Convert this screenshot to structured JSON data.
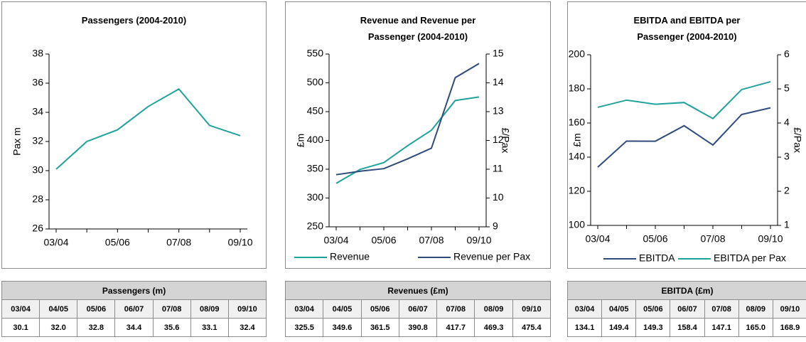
{
  "chart_data": [
    {
      "type": "line",
      "title": "Passengers (2004-2010)",
      "ylabel": "Pax m",
      "categories": [
        "03/04",
        null,
        "05/06",
        null,
        "07/08",
        null,
        "09/10"
      ],
      "series": [
        {
          "color": "#1fa39a",
          "values": [
            30.1,
            32.0,
            32.8,
            34.4,
            35.6,
            33.1,
            32.4
          ]
        }
      ],
      "ylim": [
        26,
        38
      ],
      "yticks": [
        26,
        28,
        30,
        32,
        34,
        36,
        38
      ]
    },
    {
      "type": "line",
      "title": "Revenue and Revenue per Passenger (2004-2010)",
      "ylabel": "£m",
      "y2label": "£/Pax",
      "categories": [
        "03/04",
        null,
        "05/06",
        null,
        "07/08",
        null,
        "09/10"
      ],
      "series": [
        {
          "name": "Revenue",
          "color": "#1fa39a",
          "values": [
            325.5,
            349.6,
            361.5,
            390.8,
            417.7,
            469.3,
            475.4
          ]
        },
        {
          "name": "Revenue per Pax",
          "color": "#2f4b7c",
          "axis": "y2",
          "values": [
            10.81,
            10.93,
            11.02,
            11.36,
            11.73,
            14.18,
            14.67
          ]
        }
      ],
      "ylim": [
        250,
        550
      ],
      "yticks": [
        250,
        300,
        350,
        400,
        450,
        500,
        550
      ],
      "y2lim": [
        9,
        15
      ],
      "y2ticks": [
        9,
        10,
        11,
        12,
        13,
        14,
        15
      ],
      "legend": "bottom"
    },
    {
      "type": "line",
      "title": "EBITDA and EBITDA per Passenger (2004-2010)",
      "ylabel": "£m",
      "y2label": "£/Pax",
      "categories": [
        "03/04",
        null,
        "05/06",
        null,
        "07/08",
        null,
        "09/10"
      ],
      "series": [
        {
          "name": "EBITDA",
          "color": "#2f4b7c",
          "values": [
            134.1,
            149.4,
            149.3,
            158.4,
            147.1,
            165.0,
            168.9
          ]
        },
        {
          "name": "EBITDA per Pax",
          "color": "#1fa39a",
          "axis": "y2",
          "values": [
            4.46,
            4.67,
            4.55,
            4.6,
            4.13,
            4.98,
            5.21
          ]
        }
      ],
      "ylim": [
        100,
        200
      ],
      "yticks": [
        100,
        120,
        140,
        160,
        180,
        200
      ],
      "y2lim": [
        1,
        6
      ],
      "y2ticks": [
        1,
        2,
        3,
        4,
        5,
        6
      ],
      "legend": "bottom"
    }
  ],
  "tables": [
    {
      "title": "Passengers (m)",
      "header": [
        "03/04",
        "04/05",
        "05/06",
        "06/07",
        "07/08",
        "08/09",
        "09/10"
      ],
      "rows": [
        [
          "30.1",
          "32.0",
          "32.8",
          "34.4",
          "35.6",
          "33.1",
          "32.4"
        ]
      ]
    },
    {
      "title": "Revenues (£m)",
      "header": [
        "03/04",
        "04/05",
        "05/06",
        "06/07",
        "07/08",
        "08/09",
        "09/10"
      ],
      "rows": [
        [
          "325.5",
          "349.6",
          "361.5",
          "390.8",
          "417.7",
          "469.3",
          "475.4"
        ]
      ]
    },
    {
      "title": "EBITDA (£m)",
      "header": [
        "03/04",
        "04/05",
        "05/06",
        "06/07",
        "07/08",
        "08/09",
        "09/10"
      ],
      "rows": [
        [
          "134.1",
          "149.4",
          "149.3",
          "158.4",
          "147.1",
          "165.0",
          "168.9"
        ]
      ]
    }
  ]
}
